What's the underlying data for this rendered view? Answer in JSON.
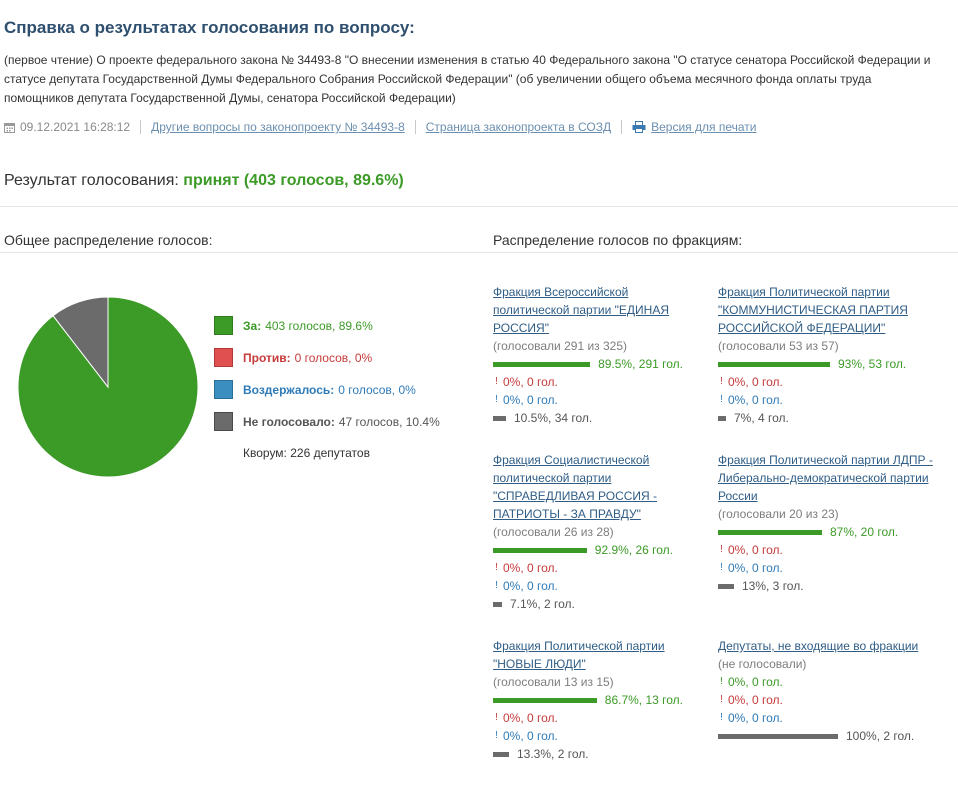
{
  "header": {
    "title": "Справка о результатах голосования по вопросу:",
    "description": "(первое чтение) О проекте федерального закона № 34493-8 \"О внесении изменения в статью 40 Федерального закона \"О статусе сенатора Российской Федерации и статусе депутата Государственной Думы Федерального Собрания Российской Федерации\" (об увеличении общего объема месячного фонда оплаты труда помощников депутата Государственной Думы, сенатора Российской Федерации)"
  },
  "meta": {
    "datetime": "09.12.2021 16:28:12",
    "link_other": "Другие вопросы по законопроекту № 34493-8",
    "link_page": "Страница законопроекта в СОЗД",
    "link_print": "Версия для печати"
  },
  "result": {
    "label": "Результат голосования:",
    "value": "принят (403 голосов, 89.6%)"
  },
  "sections": {
    "overall": "Общее распределение голосов:",
    "by_faction": "Распределение голосов по фракциям:"
  },
  "colors": {
    "for": "#3c9a27",
    "against": "#e05050",
    "abstain": "#3a8fc0",
    "absent": "#6b6b6b"
  },
  "chart_data": {
    "type": "pie",
    "title": "Общее распределение голосов",
    "categories": [
      "За",
      "Против",
      "Воздержалось",
      "Не голосовало"
    ],
    "values": [
      403,
      0,
      0,
      47
    ],
    "percent": [
      89.6,
      0,
      0,
      10.4
    ]
  },
  "legend": [
    {
      "label": "За:",
      "text": "403 голосов, 89.6%"
    },
    {
      "label": "Против:",
      "text": "0 голосов, 0%"
    },
    {
      "label": "Воздержалось:",
      "text": "0 голосов, 0%"
    },
    {
      "label": "Не голосовало:",
      "text": "47 голосов, 10.4%"
    }
  ],
  "quorum": "Кворум: 226 депутатов",
  "factions": [
    {
      "name": "Фракция Всероссийской политической партии \"ЕДИНАЯ РОССИЯ\"",
      "voted": "(голосовали 291 из 325)",
      "rows": [
        {
          "pct": 89.5,
          "text": "89.5%, 291 гол."
        },
        {
          "pct": 0,
          "text": "0%, 0 гол."
        },
        {
          "pct": 0,
          "text": "0%, 0 гол."
        },
        {
          "pct": 10.5,
          "text": "10.5%, 34 гол."
        }
      ]
    },
    {
      "name": "Фракция Политической партии \"КОММУНИСТИЧЕСКАЯ ПАРТИЯ РОССИЙСКОЙ ФЕДЕРАЦИИ\"",
      "voted": "(голосовали 53 из 57)",
      "rows": [
        {
          "pct": 93,
          "text": "93%, 53 гол."
        },
        {
          "pct": 0,
          "text": "0%, 0 гол."
        },
        {
          "pct": 0,
          "text": "0%, 0 гол."
        },
        {
          "pct": 7,
          "text": "7%, 4 гол."
        }
      ]
    },
    {
      "name": "Фракция Социалистической политической партии \"СПРАВЕДЛИВАЯ РОССИЯ - ПАТРИОТЫ - ЗА ПРАВДУ\"",
      "voted": "(голосовали 26 из 28)",
      "rows": [
        {
          "pct": 92.9,
          "text": "92.9%, 26 гол."
        },
        {
          "pct": 0,
          "text": "0%, 0 гол."
        },
        {
          "pct": 0,
          "text": "0%, 0 гол."
        },
        {
          "pct": 7.1,
          "text": "7.1%, 2 гол."
        }
      ]
    },
    {
      "name": "Фракция Политической партии ЛДПР - Либерально-демократической партии России",
      "voted": "(голосовали 20 из 23)",
      "rows": [
        {
          "pct": 87,
          "text": "87%, 20 гол."
        },
        {
          "pct": 0,
          "text": "0%, 0 гол."
        },
        {
          "pct": 0,
          "text": "0%, 0 гол."
        },
        {
          "pct": 13,
          "text": "13%, 3 гол."
        }
      ]
    },
    {
      "name": "Фракция Политической партии \"НОВЫЕ ЛЮДИ\"",
      "voted": "(голосовали 13 из 15)",
      "rows": [
        {
          "pct": 86.7,
          "text": "86.7%, 13 гол."
        },
        {
          "pct": 0,
          "text": "0%, 0 гол."
        },
        {
          "pct": 0,
          "text": "0%, 0 гол."
        },
        {
          "pct": 13.3,
          "text": "13.3%, 2 гол."
        }
      ]
    },
    {
      "name": "Депутаты, не входящие во фракции",
      "voted": "(не голосовали)",
      "rows": [
        {
          "pct": 0,
          "text": "0%, 0 гол."
        },
        {
          "pct": 0,
          "text": "0%, 0 гол."
        },
        {
          "pct": 0,
          "text": "0%, 0 гол."
        },
        {
          "pct": 100,
          "text": "100%, 2 гол."
        }
      ]
    }
  ]
}
